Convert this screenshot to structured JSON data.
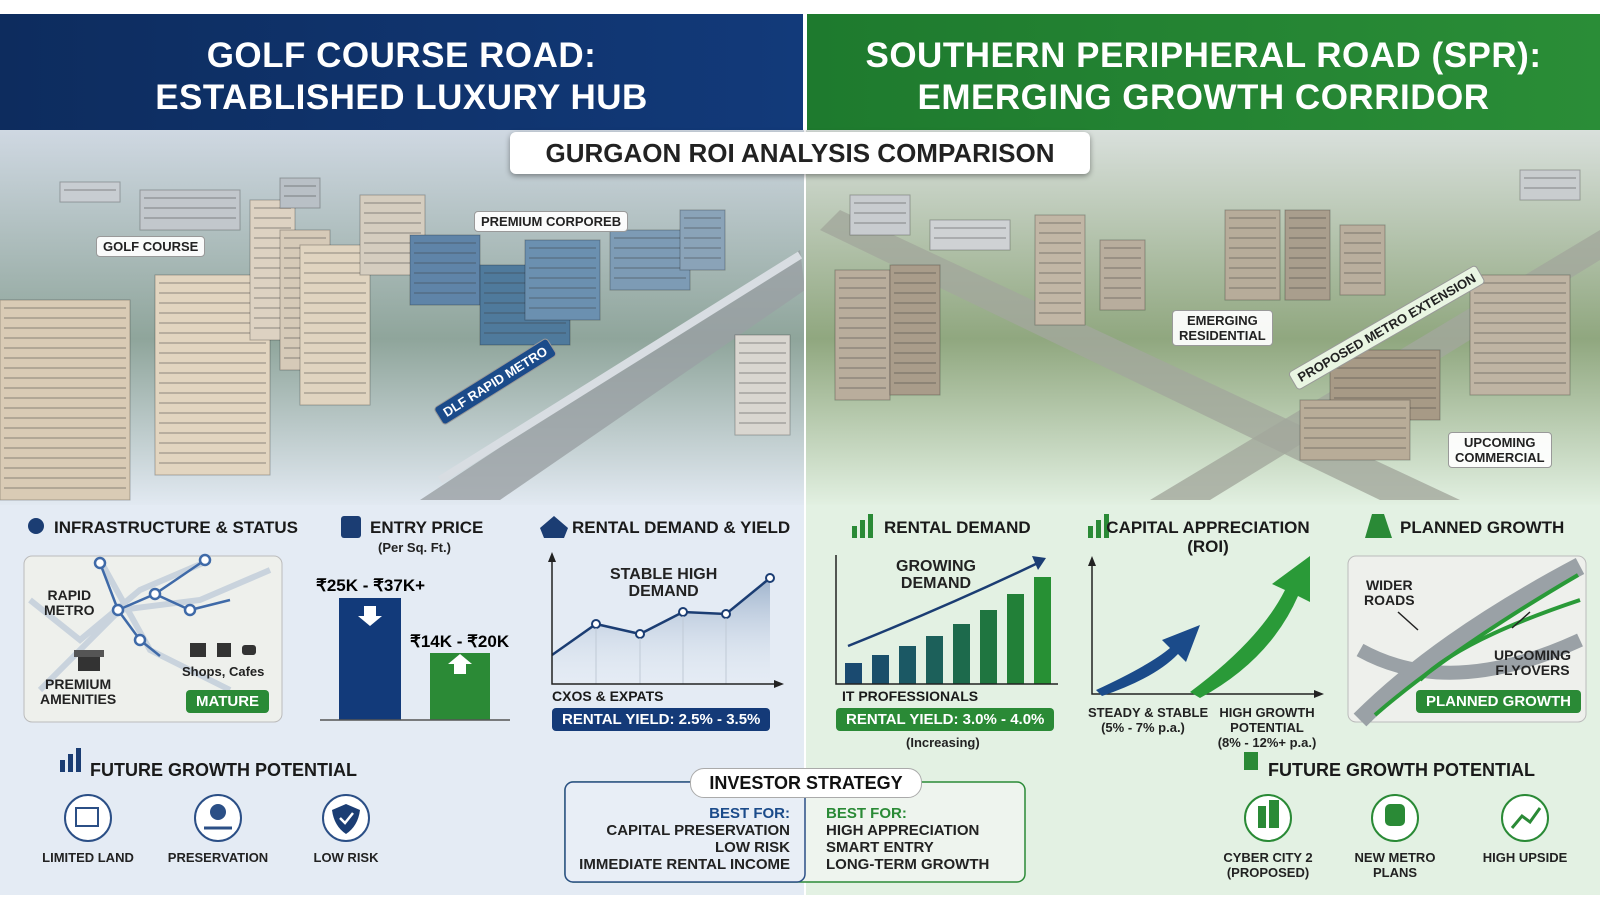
{
  "header": {
    "left": [
      "GOLF COURSE ROAD:",
      "ESTABLISHED LUXURY HUB"
    ],
    "right": [
      "SOUTHERN PERIPHERAL ROAD (SPR):",
      "EMERGING GROWTH CORRIDOR"
    ],
    "banner": "GURGAON ROI ANALYSIS COMPARISON"
  },
  "photo_labels": {
    "golf_course": "GOLF COURSE",
    "premium_corporate": "PREMIUM CORPOREB",
    "rapid_metro": "DLF RAPID METRO",
    "emerging_residential": [
      "EMERGING",
      "RESIDENTIAL"
    ],
    "metro_extension": "PROPOSED METRO EXTENSION",
    "upcoming_commercial": [
      "UPCOMING",
      "COMMERCIAL"
    ]
  },
  "left_panels": {
    "infrastructure": {
      "title": "INFRASTRUCTURE & STATUS",
      "metro": [
        "RAPID",
        "METRO"
      ],
      "amenities": [
        "PREMIUM",
        "AMENITIES"
      ],
      "shops": "Shops, Cafes",
      "status": "MATURE"
    },
    "entry_price": {
      "title": "ENTRY PRICE",
      "unit": "(Per Sq. Ft.)",
      "golf_course_road": "₹25K - ₹37K+",
      "spr": "₹14K - ₹20K"
    },
    "rental": {
      "title": "RENTAL DEMAND & YIELD",
      "chart_label": [
        "STABLE HIGH",
        "DEMAND"
      ],
      "tenants": "CXOS & EXPATS",
      "yield": "RENTAL YIELD: 2.5% - 3.5%"
    }
  },
  "right_panels": {
    "rental": {
      "title": "RENTAL DEMAND",
      "chart_label": [
        "GROWING",
        "DEMAND"
      ],
      "tenants": "IT PROFESSIONALS",
      "yield": "RENTAL YIELD: 3.0% - 4.0%",
      "trend": "(Increasing)"
    },
    "appreciation": {
      "title": [
        "CAPITAL APPRECIATION",
        "(ROI)"
      ],
      "golf_course_road": [
        "STEADY & STABLE",
        "(5% - 7% p.a.)"
      ],
      "spr": [
        "HIGH GROWTH",
        "POTENTIAL",
        "(8% - 12%+ p.a.)"
      ]
    },
    "planned_growth": {
      "title": "PLANNED GROWTH",
      "roads": [
        "WIDER",
        "ROADS"
      ],
      "flyovers": [
        "UPCOMING",
        "FLYOVERS"
      ],
      "status": "PLANNED GROWTH"
    }
  },
  "future_growth": {
    "left": {
      "title": "FUTURE GROWTH POTENTIAL",
      "items": [
        [
          "LIMITED LAND"
        ],
        [
          "PRESERVATION"
        ],
        [
          "LOW RISK"
        ]
      ]
    },
    "right": {
      "title": "FUTURE GROWTH POTENTIAL",
      "items": [
        [
          "CYBER CITY 2",
          "(PROPOSED)"
        ],
        [
          "NEW METRO",
          "PLANS"
        ],
        [
          "HIGH UPSIDE"
        ]
      ]
    }
  },
  "investor_strategy": {
    "title": "INVESTOR STRATEGY",
    "left": {
      "heading": "BEST FOR:",
      "items": [
        "CAPITAL PRESERVATION",
        "LOW RISK",
        "IMMEDIATE RENTAL INCOME"
      ]
    },
    "right": {
      "heading": "BEST FOR:",
      "items": [
        "HIGH APPRECIATION",
        "SMART ENTRY",
        "LONG-TERM GROWTH"
      ]
    }
  }
}
